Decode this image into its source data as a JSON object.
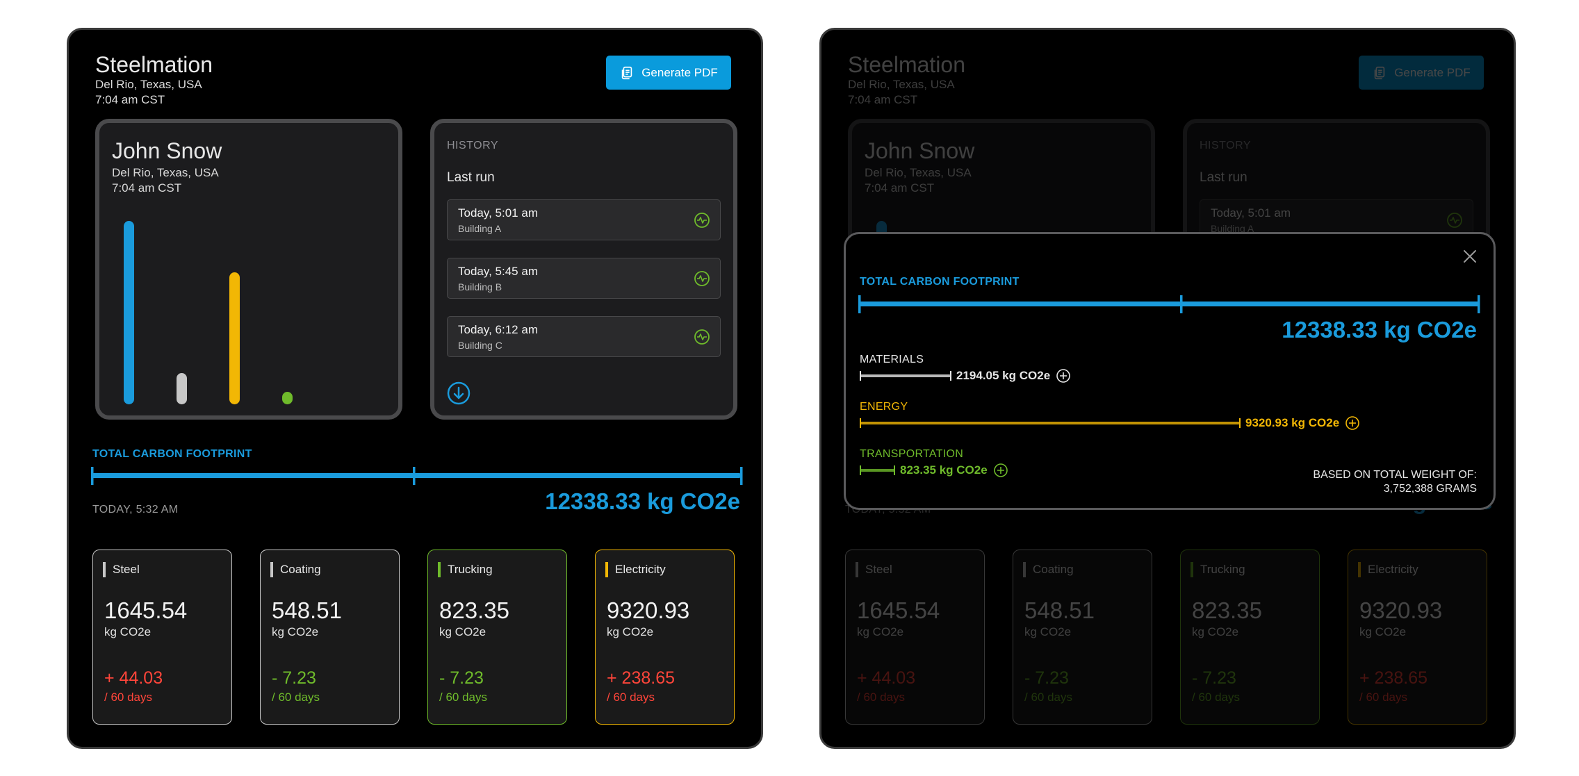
{
  "colors": {
    "accent_blue": "#1a9bdc",
    "steel": "#c7c7c7",
    "trucking": "#6fbb2b",
    "electricity": "#f2b705",
    "negative": "#ff453a"
  },
  "header": {
    "app_title": "Steelmation",
    "location": "Del Rio, Texas, USA",
    "time": "7:04 am CST",
    "pdf_button": "Generate PDF",
    "pdf_icon": "document-copy-icon"
  },
  "profile": {
    "name": "John Snow",
    "location": "Del Rio, Texas, USA",
    "time": "7:04 am CST",
    "bars": [
      {
        "name": "steel",
        "value": 1.0,
        "color": "#1a9bdc"
      },
      {
        "name": "coating",
        "value": 0.17,
        "color": "#c7c7c7"
      },
      {
        "name": "electricity",
        "value": 0.72,
        "color": "#f2b705"
      },
      {
        "name": "trucking",
        "value": 0.07,
        "color": "#6fbb2b"
      }
    ]
  },
  "history": {
    "label": "HISTORY",
    "last_run": "Last run",
    "items": [
      {
        "time": "Today, 5:01 am",
        "building": "Building A"
      },
      {
        "time": "Today, 5:45 am",
        "building": "Building B"
      },
      {
        "time": "Today, 6:12 am",
        "building": "Building C"
      }
    ]
  },
  "footprint": {
    "label": "TOTAL CARBON FOOTPRINT",
    "date": "TODAY, 5:32 AM",
    "total": "12338.33 kg CO2e"
  },
  "stats": [
    {
      "name": "Steel",
      "value": "1645.54",
      "unit": "kg CO2e",
      "change": "+ 44.03",
      "period": "/ 60 days",
      "color": "#c7c7c7",
      "trend": "up"
    },
    {
      "name": "Coating",
      "value": "548.51",
      "unit": "kg CO2e",
      "change": "- 7.23",
      "period": "/ 60 days",
      "color": "#c7c7c7",
      "trend": "down"
    },
    {
      "name": "Trucking",
      "value": "823.35",
      "unit": "kg CO2e",
      "change": "- 7.23",
      "period": "/ 60 days",
      "color": "#6fbb2b",
      "trend": "down"
    },
    {
      "name": "Electricity",
      "value": "9320.93",
      "unit": "kg CO2e",
      "change": "+ 238.65",
      "period": "/ 60 days",
      "color": "#f2b705",
      "trend": "up"
    }
  ],
  "modal": {
    "label": "TOTAL CARBON FOOTPRINT",
    "total": "12338.33 kg CO2e",
    "breakdown": [
      {
        "label": "MATERIALS",
        "value": "2194.05 kg CO2e",
        "fraction": 0.178,
        "color": "#e6e6e6",
        "label_color": "#e6e6e6"
      },
      {
        "label": "ENERGY",
        "value": "9320.93 kg CO2e",
        "fraction": 0.755,
        "color": "#f2b705",
        "label_color": "#f2b705"
      },
      {
        "label": "TRANSPORTATION",
        "value": "823.35 kg CO2e",
        "fraction": 0.067,
        "color": "#6fbb2b",
        "label_color": "#6fbb2b"
      }
    ],
    "note_line1": "BASED ON TOTAL WEIGHT OF:",
    "note_line2": "3,752,388 GRAMS"
  }
}
